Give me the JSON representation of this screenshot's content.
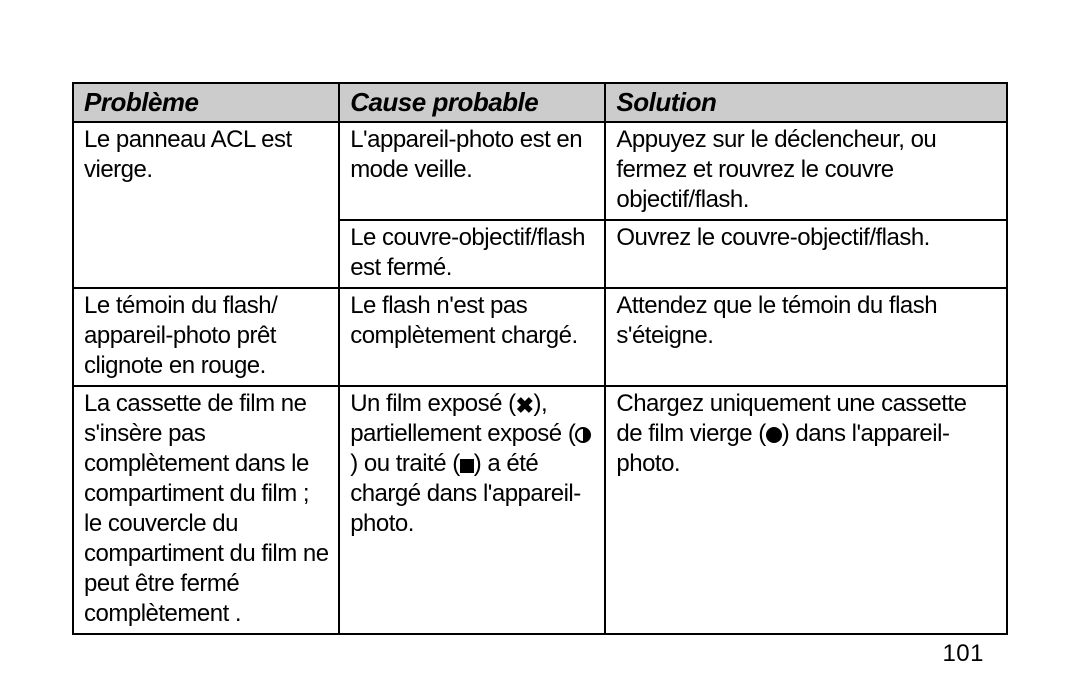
{
  "page_number": "101",
  "table": {
    "headers": [
      "Problème",
      "Cause probable",
      "Solution"
    ],
    "column_widths_pct": [
      28.5,
      28.5,
      43
    ],
    "header_bg": "#cccccc",
    "border_color": "#000000",
    "font_family": "Arial, Helvetica, sans-serif",
    "header_font_size_pt": 20,
    "cell_font_size_pt": 18
  },
  "rows": [
    {
      "problem": "Le panneau ACL est vierge.",
      "problem_rowspan": 2,
      "cause": "L'appareil-photo est en mode veille.",
      "solution": "Appuyez sur le déclencheur, ou fermez et rouvrez le couvre objectif/flash."
    },
    {
      "cause": "Le couvre-objectif/flash est fermé.",
      "solution": "Ouvrez le couvre-objectif/flash."
    },
    {
      "problem": "Le témoin du flash/ appareil-photo prêt clignote en rouge.",
      "cause": "Le flash n'est pas complètement chargé.",
      "solution": "Attendez que le témoin du flash s'éteigne."
    },
    {
      "problem": "La cassette de film ne s'insère pas complètement dans le compartiment du film ; le couvercle du compartiment du film ne peut être fermé complètement .",
      "cause_pre": "Un film exposé (",
      "cause_sym1": "x",
      "cause_mid1": "), partiellement exposé (",
      "cause_sym2": "half",
      "cause_mid2": ") ou traité (",
      "cause_sym3": "square",
      "cause_post": ") a été chargé dans l'appareil-photo.",
      "solution_pre": "Chargez uniquement une cassette de film vierge (",
      "solution_sym": "full",
      "solution_post": ") dans l'appareil-photo."
    }
  ],
  "symbols": {
    "x": "✖",
    "half": "half-circle",
    "square": "square",
    "full": "full-circle"
  }
}
